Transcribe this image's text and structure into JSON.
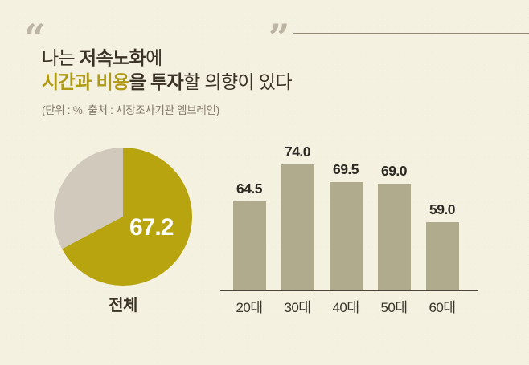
{
  "page": {
    "background": "#f4f1e1"
  },
  "header": {
    "quote_open": "“",
    "quote_close": "”",
    "title_line1": [
      {
        "text": "나는 ",
        "style": "regular"
      },
      {
        "text": "저속노화",
        "style": "bold"
      },
      {
        "text": "에",
        "style": "regular"
      }
    ],
    "title_line2": [
      {
        "text": "시간과 비용",
        "style": "accent"
      },
      {
        "text": "을 투자",
        "style": "bold"
      },
      {
        "text": "할 의향이 있다",
        "style": "regular"
      }
    ],
    "subtitle": "(단위 : %, 출처 : 시장조사기관 엠브레인)"
  },
  "colors": {
    "background": "#f4f1e1",
    "title_text": "#3b3426",
    "title_accent": "#b09a15",
    "subtitle_text": "#837b6b",
    "quote_marks": "#bdb5a4",
    "header_rule": "#8f8873",
    "pie_main": "#b8a40f",
    "pie_remainder": "#d1cabc",
    "pie_value_text": "#ffffff",
    "bar_fill": "#afab8c",
    "axis_line": "#4a4537",
    "value_label_text": "#2e2b24",
    "category_label_text": "#3a3529"
  },
  "chart_data": [
    {
      "type": "pie",
      "title": "전체",
      "value_label": "67.2",
      "start_angle": "top",
      "direction": "clockwise",
      "slices": [
        {
          "value": 67.2,
          "color": "#b8a40f"
        },
        {
          "value": 32.8,
          "color": "#d1cabc"
        }
      ]
    },
    {
      "type": "bar",
      "categories": [
        "20대",
        "30대",
        "40대",
        "50대",
        "60대"
      ],
      "values": [
        64.5,
        74.0,
        69.5,
        69.0,
        59.0
      ],
      "value_labels": [
        "64.5",
        "74.0",
        "69.5",
        "69.0",
        "59.0"
      ],
      "ylim": [
        41.5,
        80
      ],
      "bar_color": "#afab8c",
      "grid": false,
      "legend": "none"
    }
  ]
}
